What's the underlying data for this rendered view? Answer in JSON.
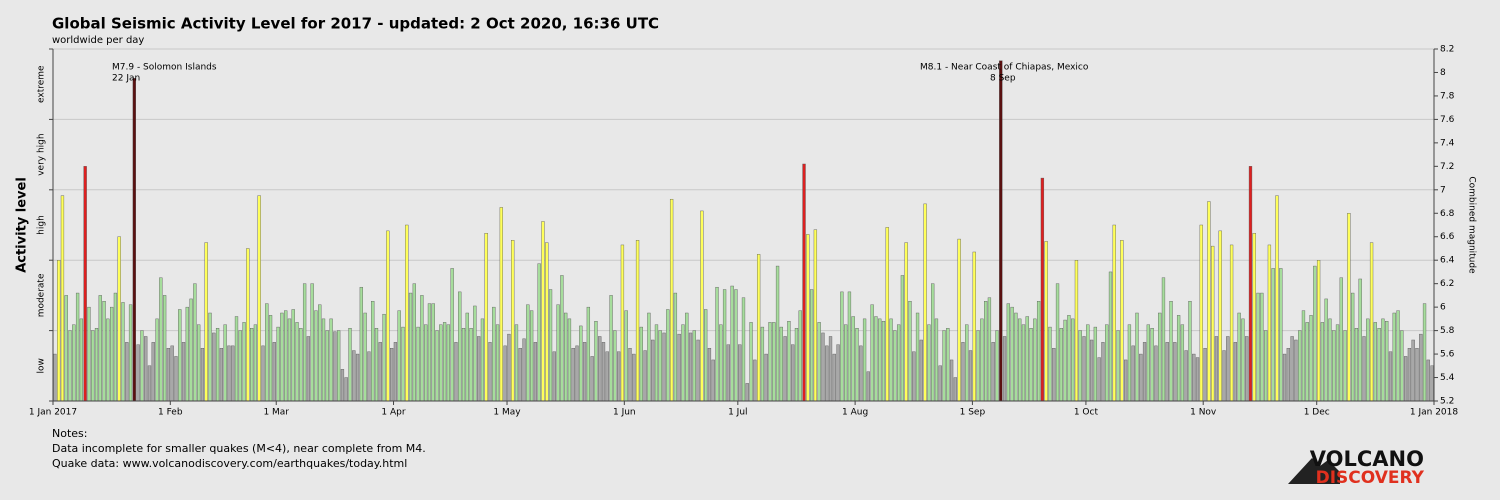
{
  "chart_data": {
    "type": "bar",
    "title": "Global Seismic Activity Level for 2017 - updated:  2 Oct 2020, 16:36 UTC",
    "subtitle": "worldwide per day",
    "ylabel": "Activity level",
    "y2label": "Combined magnitude",
    "xlim": [
      0,
      365
    ],
    "xticks": [
      {
        "value": 0,
        "label": "1 Jan 2017"
      },
      {
        "value": 31,
        "label": "1 Feb"
      },
      {
        "value": 59,
        "label": "1 Mar"
      },
      {
        "value": 90,
        "label": "1 Apr"
      },
      {
        "value": 120,
        "label": "1 May"
      },
      {
        "value": 151,
        "label": "1 Jun"
      },
      {
        "value": 181,
        "label": "1 Jul"
      },
      {
        "value": 212,
        "label": "1 Aug"
      },
      {
        "value": 243,
        "label": "1 Sep"
      },
      {
        "value": 273,
        "label": "1 Oct"
      },
      {
        "value": 304,
        "label": "1 Nov"
      },
      {
        "value": 334,
        "label": "1 Dec"
      },
      {
        "value": 365,
        "label": "1 Jan 2018"
      }
    ],
    "y2lim": [
      5.2,
      8.2
    ],
    "y2ticks": [
      5.2,
      5.4,
      5.6,
      5.8,
      6,
      6.2,
      6.4,
      6.6,
      6.8,
      7,
      7.2,
      7.4,
      7.6,
      7.8,
      8,
      8.2
    ],
    "level_bounds": [
      5.2,
      5.8,
      6.4,
      7.0,
      7.6,
      8.2
    ],
    "levels": [
      {
        "label": "low",
        "color": "#a8a8a8"
      },
      {
        "label": "moderate",
        "color": "#a6dd9c"
      },
      {
        "label": "high",
        "color": "#ffff5a"
      },
      {
        "label": "very high",
        "color": "#dd2020"
      },
      {
        "label": "extreme",
        "color": "#5a1010"
      }
    ],
    "grid": true,
    "values": [
      5.6,
      6.4,
      6.95,
      6.1,
      5.8,
      5.85,
      6.12,
      5.9,
      7.2,
      6.0,
      5.8,
      5.82,
      6.1,
      6.05,
      5.9,
      6.0,
      6.12,
      6.6,
      6.04,
      5.7,
      6.02,
      7.95,
      5.68,
      5.8,
      5.75,
      5.5,
      5.7,
      5.9,
      6.25,
      6.1,
      5.65,
      5.67,
      5.58,
      5.98,
      5.7,
      6.0,
      6.07,
      6.2,
      5.85,
      5.65,
      6.55,
      5.95,
      5.78,
      5.82,
      5.65,
      5.85,
      5.67,
      5.67,
      5.92,
      5.8,
      5.87,
      6.5,
      5.82,
      5.85,
      6.95,
      5.67,
      6.03,
      5.93,
      5.7,
      5.83,
      5.95,
      5.97,
      5.9,
      5.98,
      5.87,
      5.82,
      6.2,
      5.75,
      6.2,
      5.97,
      6.02,
      5.9,
      5.8,
      5.9,
      5.79,
      5.8,
      5.47,
      5.4,
      5.82,
      5.63,
      5.6,
      6.17,
      5.95,
      5.62,
      6.05,
      5.82,
      5.7,
      5.94,
      6.65,
      5.65,
      5.7,
      5.97,
      5.83,
      6.7,
      6.12,
      6.2,
      5.83,
      6.1,
      5.85,
      6.03,
      6.03,
      5.8,
      5.85,
      5.87,
      5.85,
      6.33,
      5.7,
      6.13,
      5.82,
      5.95,
      5.82,
      6.01,
      5.75,
      5.9,
      6.63,
      5.7,
      6.0,
      5.85,
      6.85,
      5.67,
      5.77,
      6.57,
      5.85,
      5.65,
      5.73,
      6.02,
      5.97,
      5.7,
      6.37,
      6.73,
      6.55,
      6.15,
      5.62,
      6.02,
      6.27,
      5.95,
      5.9,
      5.65,
      5.67,
      5.84,
      5.7,
      6.0,
      5.58,
      5.88,
      5.75,
      5.7,
      5.62,
      6.1,
      5.8,
      5.62,
      6.53,
      5.97,
      5.65,
      5.6,
      6.57,
      5.83,
      5.63,
      5.95,
      5.72,
      5.85,
      5.8,
      5.78,
      5.98,
      6.92,
      6.12,
      5.77,
      5.85,
      5.95,
      5.78,
      5.8,
      5.72,
      6.82,
      5.98,
      5.65,
      5.55,
      6.17,
      5.85,
      6.15,
      5.68,
      6.18,
      6.15,
      5.68,
      6.08,
      5.35,
      5.87,
      5.55,
      6.45,
      5.83,
      5.6,
      5.87,
      5.87,
      6.35,
      5.83,
      5.75,
      5.88,
      5.68,
      5.82,
      5.97,
      7.22,
      6.62,
      6.15,
      6.66,
      5.87,
      5.78,
      5.67,
      5.75,
      5.6,
      5.68,
      6.13,
      5.85,
      6.13,
      5.92,
      5.82,
      5.67,
      5.9,
      5.45,
      6.02,
      5.92,
      5.9,
      5.88,
      6.68,
      5.9,
      5.8,
      5.85,
      6.27,
      6.55,
      6.05,
      5.62,
      5.95,
      5.72,
      6.88,
      5.85,
      6.2,
      5.9,
      5.5,
      5.8,
      5.82,
      5.55,
      5.4,
      6.58,
      5.7,
      5.85,
      5.63,
      6.47,
      5.8,
      5.9,
      6.05,
      6.08,
      5.7,
      5.8,
      8.1,
      5.75,
      6.03,
      6.0,
      5.95,
      5.9,
      5.85,
      5.92,
      5.82,
      5.9,
      6.05,
      7.1,
      6.56,
      5.83,
      5.65,
      6.2,
      5.82,
      5.89,
      5.93,
      5.9,
      6.4,
      5.8,
      5.75,
      5.85,
      5.72,
      5.83,
      5.57,
      5.7,
      5.85,
      6.3,
      6.7,
      5.8,
      6.57,
      5.55,
      5.85,
      5.67,
      5.95,
      5.6,
      5.7,
      5.85,
      5.82,
      5.67,
      5.95,
      6.25,
      5.7,
      6.05,
      5.7,
      5.93,
      5.85,
      5.63,
      6.05,
      5.6,
      5.57,
      6.7,
      5.65,
      6.9,
      6.52,
      5.75,
      6.65,
      5.63,
      5.75,
      6.53,
      5.7,
      5.95,
      5.9,
      5.75,
      7.2,
      6.63,
      6.12,
      6.12,
      5.8,
      6.53,
      6.33,
      6.95,
      6.33,
      5.6,
      5.65,
      5.75,
      5.72,
      5.8,
      5.97,
      5.87,
      5.93,
      6.35,
      6.4,
      5.87,
      6.07,
      5.9,
      5.8,
      5.85,
      6.25,
      5.8,
      6.8,
      6.12,
      5.82,
      6.24,
      5.75,
      5.9,
      6.55,
      5.87,
      5.82,
      5.9,
      5.88,
      5.62,
      5.95,
      5.97,
      5.8,
      5.58,
      5.65,
      5.72,
      5.65,
      5.77,
      6.03,
      5.55,
      5.5
    ],
    "annotations": [
      {
        "label": "M7.9 - Solomon Islands",
        "date": "22 Jan"
      },
      {
        "label": "M8.1 - Near Coast of Chiapas, Mexico",
        "date": "8 Sep"
      }
    ]
  },
  "notes": {
    "heading": "Notes:",
    "lines": [
      "Data incomplete for smaller quakes (M<4), near complete from M4.",
      "Quake data: www.volcanodiscovery.com/earthquakes/today.html"
    ]
  },
  "logo": {
    "top": "VOLCANO",
    "bottom": "DISCOVERY"
  }
}
